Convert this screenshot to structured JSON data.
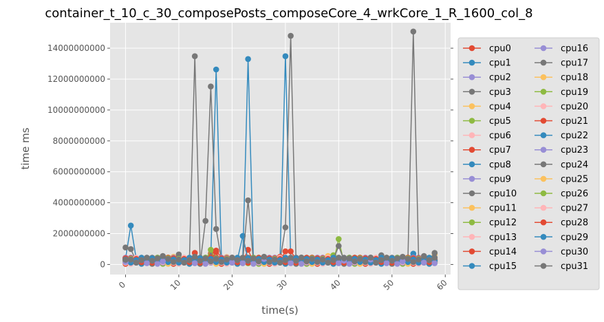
{
  "chart_data": {
    "type": "line",
    "title": "container_t_10_c_30_composePosts_composeCore_4_wrkCore_1_R_1600_col_8",
    "xlabel": "time(s)",
    "ylabel": "time ms",
    "xlim": [
      -2.9,
      61.0
    ],
    "ylim": [
      -650000000,
      15650000000
    ],
    "x_ticks": [
      0,
      10,
      20,
      30,
      40,
      50,
      60
    ],
    "x_tick_labels": [
      "0",
      "10",
      "20",
      "30",
      "40",
      "50",
      "60"
    ],
    "y_ticks": [
      0,
      2000000000,
      4000000000,
      6000000000,
      8000000000,
      10000000000,
      12000000000,
      14000000000
    ],
    "y_tick_labels": [
      "0",
      "2000000000",
      "4000000000",
      "6000000000",
      "8000000000",
      "10000000000",
      "12000000000",
      "14000000000"
    ],
    "grid": true,
    "legend_position": "right-outside",
    "legend_columns": 2,
    "palette": [
      "#E24A33",
      "#348ABD",
      "#988ED5",
      "#777777",
      "#FBC15E",
      "#8EBA42",
      "#FFB5B8"
    ],
    "x_start": 0,
    "x_end": 58,
    "baseline": 200000000,
    "series": [
      {
        "name": "cpu0",
        "values": [],
        "spikes": [
          [
            13,
            750000000
          ],
          [
            16,
            700000000
          ],
          [
            17,
            820000000
          ]
        ]
      },
      {
        "name": "cpu1",
        "values": [],
        "spikes": [
          [
            1,
            2520000000
          ],
          [
            17,
            12620000000
          ],
          [
            23,
            13300000000
          ],
          [
            30,
            13480000000
          ]
        ]
      },
      {
        "name": "cpu2",
        "values": [],
        "spikes": []
      },
      {
        "name": "cpu3",
        "values": [],
        "spikes": [
          [
            0,
            1100000000
          ],
          [
            1,
            1000000000
          ],
          [
            13,
            13480000000
          ]
        ]
      },
      {
        "name": "cpu4",
        "values": [],
        "spikes": [
          [
            8,
            450000000
          ],
          [
            9,
            500000000
          ],
          [
            19,
            480000000
          ],
          [
            49,
            450000000
          ]
        ]
      },
      {
        "name": "cpu5",
        "values": [],
        "spikes": [
          [
            16,
            950000000
          ],
          [
            40,
            1650000000
          ]
        ]
      },
      {
        "name": "cpu6",
        "values": [],
        "spikes": []
      },
      {
        "name": "cpu7",
        "values": [],
        "spikes": [
          [
            23,
            950000000
          ],
          [
            30,
            850000000
          ],
          [
            31,
            850000000
          ]
        ]
      },
      {
        "name": "cpu8",
        "values": [],
        "spikes": [
          [
            22,
            1850000000
          ],
          [
            54,
            700000000
          ]
        ]
      },
      {
        "name": "cpu9",
        "values": [],
        "spikes": []
      },
      {
        "name": "cpu10",
        "values": [],
        "spikes": [
          [
            15,
            2820000000
          ],
          [
            16,
            11520000000
          ],
          [
            17,
            2300000000
          ],
          [
            23,
            4150000000
          ],
          [
            30,
            2400000000
          ],
          [
            31,
            14800000000
          ]
        ]
      },
      {
        "name": "cpu11",
        "values": [],
        "spikes": [
          [
            38,
            550000000
          ],
          [
            58,
            650000000
          ]
        ]
      },
      {
        "name": "cpu12",
        "values": [],
        "spikes": [
          [
            39,
            600000000
          ]
        ]
      },
      {
        "name": "cpu13",
        "values": [],
        "spikes": []
      },
      {
        "name": "cpu14",
        "values": [],
        "spikes": [
          [
            17,
            900000000
          ],
          [
            29,
            500000000
          ]
        ]
      },
      {
        "name": "cpu15",
        "values": [],
        "spikes": []
      },
      {
        "name": "cpu16",
        "values": [],
        "spikes": []
      },
      {
        "name": "cpu17",
        "values": [],
        "spikes": [
          [
            54,
            15080000000
          ],
          [
            40,
            1200000000
          ],
          [
            58,
            750000000
          ]
        ]
      },
      {
        "name": "cpu18",
        "values": [],
        "spikes": [
          [
            2,
            350000000
          ]
        ]
      },
      {
        "name": "cpu19",
        "values": [],
        "spikes": []
      },
      {
        "name": "cpu20",
        "values": [],
        "spikes": []
      },
      {
        "name": "cpu21",
        "values": [],
        "spikes": []
      },
      {
        "name": "cpu22",
        "values": [],
        "spikes": []
      },
      {
        "name": "cpu23",
        "values": [],
        "spikes": []
      },
      {
        "name": "cpu24",
        "values": [],
        "spikes": [
          [
            10,
            650000000
          ],
          [
            48,
            600000000
          ]
        ]
      },
      {
        "name": "cpu25",
        "values": [],
        "spikes": []
      },
      {
        "name": "cpu26",
        "values": [],
        "spikes": []
      },
      {
        "name": "cpu27",
        "values": [],
        "spikes": []
      },
      {
        "name": "cpu28",
        "values": [],
        "spikes": []
      },
      {
        "name": "cpu29",
        "values": [],
        "spikes": []
      },
      {
        "name": "cpu30",
        "values": [],
        "spikes": []
      },
      {
        "name": "cpu31",
        "values": [],
        "spikes": [
          [
            0,
            300000000
          ],
          [
            7,
            550000000
          ],
          [
            13,
            500000000
          ],
          [
            20,
            450000000
          ],
          [
            26,
            500000000
          ],
          [
            33,
            450000000
          ],
          [
            41,
            400000000
          ],
          [
            46,
            450000000
          ],
          [
            52,
            500000000
          ],
          [
            56,
            550000000
          ]
        ]
      }
    ]
  }
}
